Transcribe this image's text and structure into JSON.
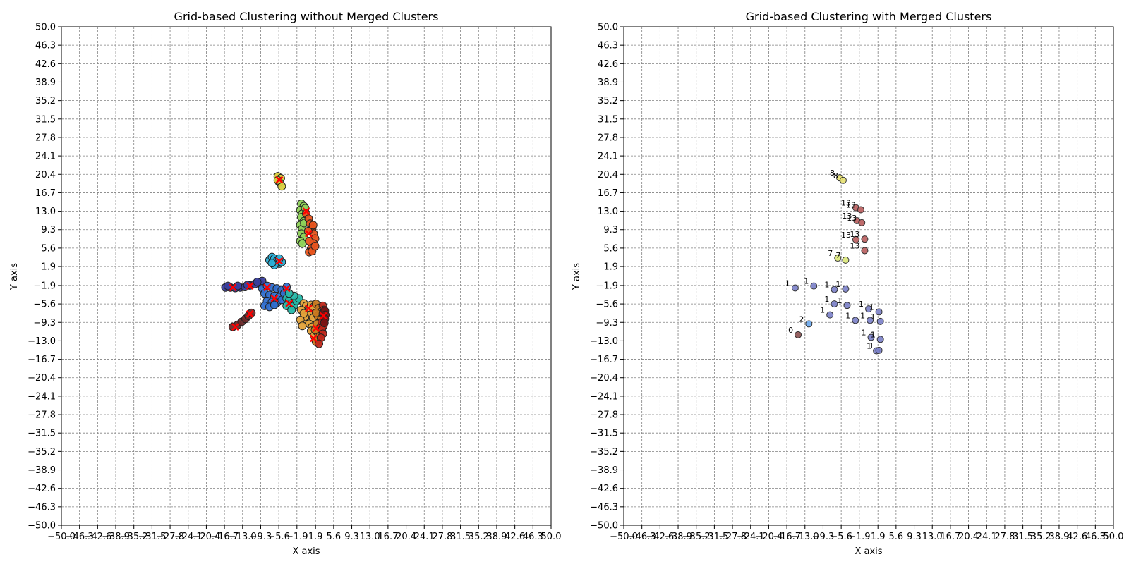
{
  "chart_data": [
    {
      "type": "scatter",
      "title": "Grid-based Clustering without Merged Clusters",
      "xlabel": "X axis",
      "ylabel": "Y axis",
      "xlim": [
        -50,
        50
      ],
      "ylim": [
        -50,
        50
      ],
      "grid": true,
      "ticks": [
        "−50.0",
        "−46.3",
        "−42.6",
        "−38.9",
        "−35.2",
        "−31.5",
        "−27.8",
        "−24.1",
        "−20.4",
        "−16.7",
        "−13.0",
        "−9.3",
        "−5.6",
        "−1.9",
        "1.9",
        "5.6",
        "9.3",
        "13.0",
        "16.7",
        "20.4",
        "24.1",
        "27.8",
        "31.5",
        "35.2",
        "38.9",
        "42.6",
        "46.3",
        "50.0"
      ],
      "clusters": [
        {
          "color": "#3a3f9e",
          "points": [
            [
              -16.5,
              -2.3
            ],
            [
              -15.5,
              -2.3
            ],
            [
              -14.5,
              -2.4
            ],
            [
              -13.5,
              -2.3
            ],
            [
              -12.5,
              -2.2
            ],
            [
              -11.5,
              -1.9
            ],
            [
              -10.5,
              -1.6
            ],
            [
              -9.5,
              -1.4
            ],
            [
              -9.0,
              -1.0
            ],
            [
              -16.0,
              -2.0
            ],
            [
              -14.0,
              -2.0
            ],
            [
              -12.0,
              -1.8
            ],
            [
              -10.0,
              -1.2
            ]
          ]
        },
        {
          "color": "#2f6fd0",
          "points": [
            [
              -9.0,
              -2.5
            ],
            [
              -8.0,
              -2.0
            ],
            [
              -7.0,
              -2.3
            ],
            [
              -6.0,
              -2.5
            ],
            [
              -5.0,
              -2.8
            ],
            [
              -4.0,
              -2.2
            ],
            [
              -8.5,
              -3.5
            ],
            [
              -7.5,
              -3.8
            ],
            [
              -6.5,
              -4.0
            ],
            [
              -5.5,
              -4.2
            ],
            [
              -8.0,
              -5.0
            ],
            [
              -7.0,
              -5.2
            ],
            [
              -6.0,
              -5.4
            ],
            [
              -8.5,
              -6.0
            ],
            [
              -7.5,
              -6.2
            ],
            [
              -6.5,
              -5.8
            ],
            [
              -5.0,
              -4.8
            ],
            [
              -4.5,
              -3.5
            ]
          ]
        },
        {
          "color": "#25b8a8",
          "points": [
            [
              -4.0,
              -4.5
            ],
            [
              -3.5,
              -5.0
            ],
            [
              -3.0,
              -5.5
            ],
            [
              -2.5,
              -6.0
            ],
            [
              -4.0,
              -6.0
            ],
            [
              -3.0,
              -6.8
            ],
            [
              -2.0,
              -5.0
            ],
            [
              -1.5,
              -4.5
            ],
            [
              -2.5,
              -4.0
            ],
            [
              -3.5,
              -3.5
            ]
          ]
        },
        {
          "color": "#2bb0d8",
          "points": [
            [
              -7.5,
              3.2
            ],
            [
              -7.0,
              3.8
            ],
            [
              -6.5,
              3.5
            ],
            [
              -6.0,
              3.0
            ],
            [
              -5.5,
              2.5
            ],
            [
              -5.0,
              2.8
            ],
            [
              -6.5,
              2.2
            ],
            [
              -7.0,
              2.6
            ],
            [
              -5.5,
              3.5
            ]
          ]
        },
        {
          "color": "#8fd35a",
          "points": [
            [
              -1.0,
              14.5
            ],
            [
              -0.5,
              14.0
            ],
            [
              -1.2,
              13.2
            ],
            [
              -0.8,
              12.5
            ],
            [
              -1.0,
              11.8
            ],
            [
              -0.5,
              11.0
            ],
            [
              -1.2,
              10.2
            ],
            [
              -0.8,
              9.5
            ],
            [
              -1.0,
              8.5
            ],
            [
              -0.5,
              7.8
            ],
            [
              -1.2,
              7.0
            ],
            [
              -0.8,
              6.5
            ],
            [
              -0.2,
              13.6
            ],
            [
              -0.4,
              10.6
            ]
          ]
        },
        {
          "color": "#e8541e",
          "points": [
            [
              0.0,
              12.5
            ],
            [
              0.5,
              11.5
            ],
            [
              0.8,
              10.5
            ],
            [
              1.2,
              9.5
            ],
            [
              1.5,
              8.5
            ],
            [
              1.8,
              7.5
            ],
            [
              1.5,
              6.5
            ],
            [
              1.0,
              5.5
            ],
            [
              0.6,
              4.8
            ],
            [
              1.2,
              5.0
            ],
            [
              1.8,
              6.0
            ],
            [
              0.4,
              9.0
            ],
            [
              0.6,
              7.0
            ],
            [
              1.4,
              10.2
            ]
          ]
        },
        {
          "color": "#d9cf3e",
          "points": [
            [
              -5.8,
              20.0
            ],
            [
              -5.2,
              19.6
            ],
            [
              -5.5,
              18.8
            ],
            [
              -5.0,
              18.0
            ],
            [
              -5.8,
              19.2
            ]
          ]
        },
        {
          "color": "#e3a23a",
          "points": [
            [
              -0.5,
              -5.5
            ],
            [
              0.0,
              -6.0
            ],
            [
              0.5,
              -6.5
            ],
            [
              1.0,
              -5.8
            ],
            [
              1.5,
              -6.2
            ],
            [
              0.2,
              -7.2
            ],
            [
              0.8,
              -7.8
            ],
            [
              1.4,
              -8.4
            ],
            [
              0.0,
              -9.0
            ],
            [
              0.6,
              -9.6
            ],
            [
              1.2,
              -10.2
            ],
            [
              -0.3,
              -8.2
            ],
            [
              1.0,
              -11.0
            ],
            [
              1.6,
              -12.0
            ],
            [
              -1.0,
              -6.8
            ],
            [
              -1.2,
              -8.8
            ],
            [
              -0.8,
              -10.0
            ],
            [
              -0.5,
              -7.5
            ]
          ]
        },
        {
          "color": "#c8781e",
          "points": [
            [
              2.0,
              -5.6
            ],
            [
              2.6,
              -6.4
            ],
            [
              3.0,
              -7.2
            ],
            [
              2.4,
              -8.0
            ],
            [
              3.0,
              -8.8
            ],
            [
              2.2,
              -9.6
            ],
            [
              2.8,
              -10.4
            ],
            [
              2.2,
              -11.2
            ],
            [
              2.8,
              -12.0
            ],
            [
              2.4,
              -12.8
            ],
            [
              2.0,
              -13.2
            ],
            [
              1.8,
              -10.8
            ],
            [
              2.0,
              -7.4
            ]
          ]
        },
        {
          "color": "#c0271a",
          "points": [
            [
              3.4,
              -6.0
            ],
            [
              3.6,
              -6.8
            ],
            [
              3.4,
              -7.6
            ],
            [
              3.6,
              -8.4
            ],
            [
              3.2,
              -9.2
            ],
            [
              3.5,
              -10.0
            ],
            [
              3.2,
              -10.8
            ],
            [
              3.4,
              -11.6
            ],
            [
              3.0,
              -12.4
            ],
            [
              2.6,
              -13.6
            ],
            [
              3.6,
              -7.2
            ]
          ]
        },
        {
          "color": "#7a1414",
          "points": [
            [
              3.8,
              -7.0
            ],
            [
              3.9,
              -7.8
            ],
            [
              3.8,
              -8.6
            ],
            [
              3.7,
              -9.4
            ]
          ]
        },
        {
          "color": "#6b2a2a",
          "points": [
            [
              -15.0,
              -10.2
            ],
            [
              -14.0,
              -9.8
            ],
            [
              -13.2,
              -9.2
            ],
            [
              -12.4,
              -8.6
            ],
            [
              -11.8,
              -8.0
            ],
            [
              -11.2,
              -7.4
            ]
          ]
        }
      ],
      "centroids": [
        [
          -15.0,
          -2.3
        ],
        [
          -11.5,
          -2.0
        ],
        [
          -8.0,
          -2.3
        ],
        [
          -6.5,
          -4.5
        ],
        [
          -4.0,
          -2.5
        ],
        [
          -5.5,
          3.0
        ],
        [
          -5.5,
          19.3
        ],
        [
          0.0,
          13.0
        ],
        [
          0.5,
          8.5
        ],
        [
          0.5,
          -6.5
        ],
        [
          2.0,
          -10.5
        ],
        [
          3.5,
          -8.0
        ],
        [
          -11.5,
          -7.6
        ],
        [
          -14.5,
          -10.2
        ],
        [
          -3.5,
          -5.5
        ],
        [
          1.5,
          -12.5
        ]
      ]
    },
    {
      "type": "scatter",
      "title": "Grid-based Clustering with Merged Clusters",
      "xlabel": "X axis",
      "ylabel": "Y axis",
      "xlim": [
        -50,
        50
      ],
      "ylim": [
        -50,
        50
      ],
      "grid": true,
      "ticks": [
        "−50.0",
        "−46.3",
        "−42.6",
        "−38.9",
        "−35.2",
        "−31.5",
        "−27.8",
        "−24.1",
        "−20.4",
        "−16.7",
        "−13.0",
        "−9.3",
        "−5.6",
        "−1.9",
        "1.9",
        "5.6",
        "9.3",
        "13.0",
        "16.7",
        "20.4",
        "24.1",
        "27.8",
        "31.5",
        "35.2",
        "38.9",
        "42.6",
        "46.3",
        "50.0"
      ],
      "points": [
        {
          "x": -15.0,
          "y": -2.4,
          "label": "1",
          "color": "#7a7fc8"
        },
        {
          "x": -11.2,
          "y": -2.0,
          "label": "1",
          "color": "#7a7fc8"
        },
        {
          "x": -7.0,
          "y": -2.7,
          "label": "1",
          "color": "#7a7fc8"
        },
        {
          "x": -4.7,
          "y": -2.6,
          "label": "1",
          "color": "#7a7fc8"
        },
        {
          "x": -7.0,
          "y": -5.6,
          "label": "1",
          "color": "#7a7fc8"
        },
        {
          "x": -4.4,
          "y": -5.9,
          "label": "1",
          "color": "#7a7fc8"
        },
        {
          "x": -7.9,
          "y": -7.8,
          "label": "1",
          "color": "#7a7fc8"
        },
        {
          "x": -2.7,
          "y": -8.9,
          "label": "1",
          "color": "#7a7fc8"
        },
        {
          "x": 0.0,
          "y": -6.6,
          "label": "1",
          "color": "#7a7fc8"
        },
        {
          "x": 2.1,
          "y": -7.2,
          "label": "1",
          "color": "#7a7fc8"
        },
        {
          "x": 0.3,
          "y": -8.9,
          "label": "1",
          "color": "#7a7fc8"
        },
        {
          "x": 2.4,
          "y": -9.1,
          "label": "1",
          "color": "#7a7fc8"
        },
        {
          "x": 0.5,
          "y": -12.3,
          "label": "1",
          "color": "#7a7fc8"
        },
        {
          "x": 2.4,
          "y": -12.7,
          "label": "1",
          "color": "#7a7fc8"
        },
        {
          "x": 1.6,
          "y": -15.0,
          "label": "1",
          "color": "#7a7fc8"
        },
        {
          "x": 2.1,
          "y": -14.9,
          "label": "1",
          "color": "#7a7fc8"
        },
        {
          "x": -12.2,
          "y": -9.6,
          "label": "2",
          "color": "#6aa8ee"
        },
        {
          "x": -14.4,
          "y": -11.8,
          "label": "0",
          "color": "#8a5050"
        },
        {
          "x": -6.3,
          "y": 3.6,
          "label": "7",
          "color": "#dbe87a"
        },
        {
          "x": -4.7,
          "y": 3.2,
          "label": "7",
          "color": "#dbe87a"
        },
        {
          "x": -5.9,
          "y": 19.7,
          "label": "8",
          "color": "#e5e070"
        },
        {
          "x": -5.2,
          "y": 19.2,
          "label": "8",
          "color": "#e5e070"
        },
        {
          "x": -2.6,
          "y": 13.7,
          "label": "13",
          "color": "#b85c5c"
        },
        {
          "x": -1.6,
          "y": 13.3,
          "label": "13",
          "color": "#b85c5c"
        },
        {
          "x": -2.4,
          "y": 11.1,
          "label": "13",
          "color": "#b85c5c"
        },
        {
          "x": -1.4,
          "y": 10.7,
          "label": "13",
          "color": "#b85c5c"
        },
        {
          "x": -2.6,
          "y": 7.3,
          "label": "13",
          "color": "#b85c5c"
        },
        {
          "x": -0.8,
          "y": 7.4,
          "label": "13",
          "color": "#b85c5c"
        },
        {
          "x": -0.8,
          "y": 5.1,
          "label": "13",
          "color": "#b85c5c"
        }
      ]
    }
  ]
}
